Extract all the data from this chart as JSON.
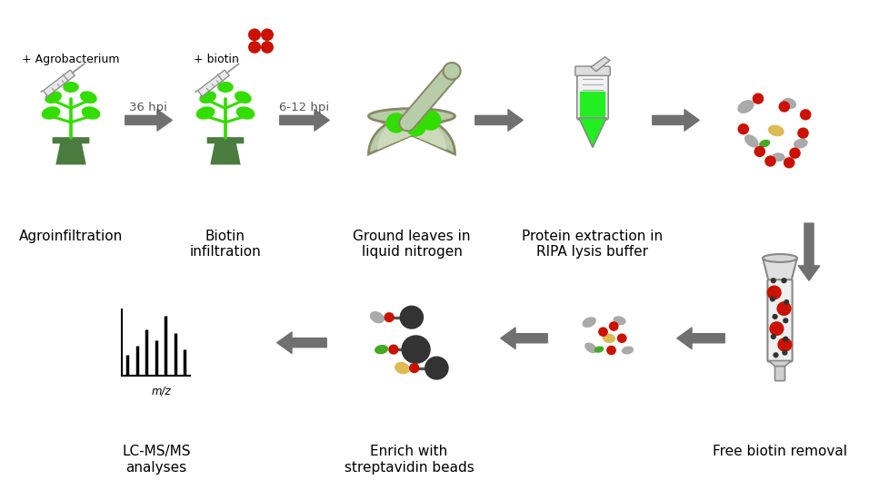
{
  "bg_color": "#ffffff",
  "arrow_color": "#707070",
  "green_bright": "#33dd00",
  "green_dark": "#4a7c3f",
  "green_mortar": "#b8ccaa",
  "green_mortar_outline": "#888866",
  "red_dot": "#cc1100",
  "gray_protein": "#aaaaaa",
  "yellow_protein": "#ddbb55",
  "green_small": "#44aa22",
  "bead_dark": "#333333",
  "step1_label": "Agroinfiltration",
  "step2_label": "Biotin\ninfiltration",
  "step3_label": "Ground leaves in\nliquid nitrogen",
  "step4_label": "Protein extraction in\nRIPA lysis buffer",
  "step5_label": "Free biotin removal",
  "step6_label": "Enrich with\nstreptavidin beads",
  "step7_label": "LC-MS/MS\nanalyses",
  "top1": "+ Agrobacterium",
  "top2": "+ biotin",
  "arrow1": "36 hpi",
  "arrow2": "6-12 hpi",
  "label_fontsize": 11
}
